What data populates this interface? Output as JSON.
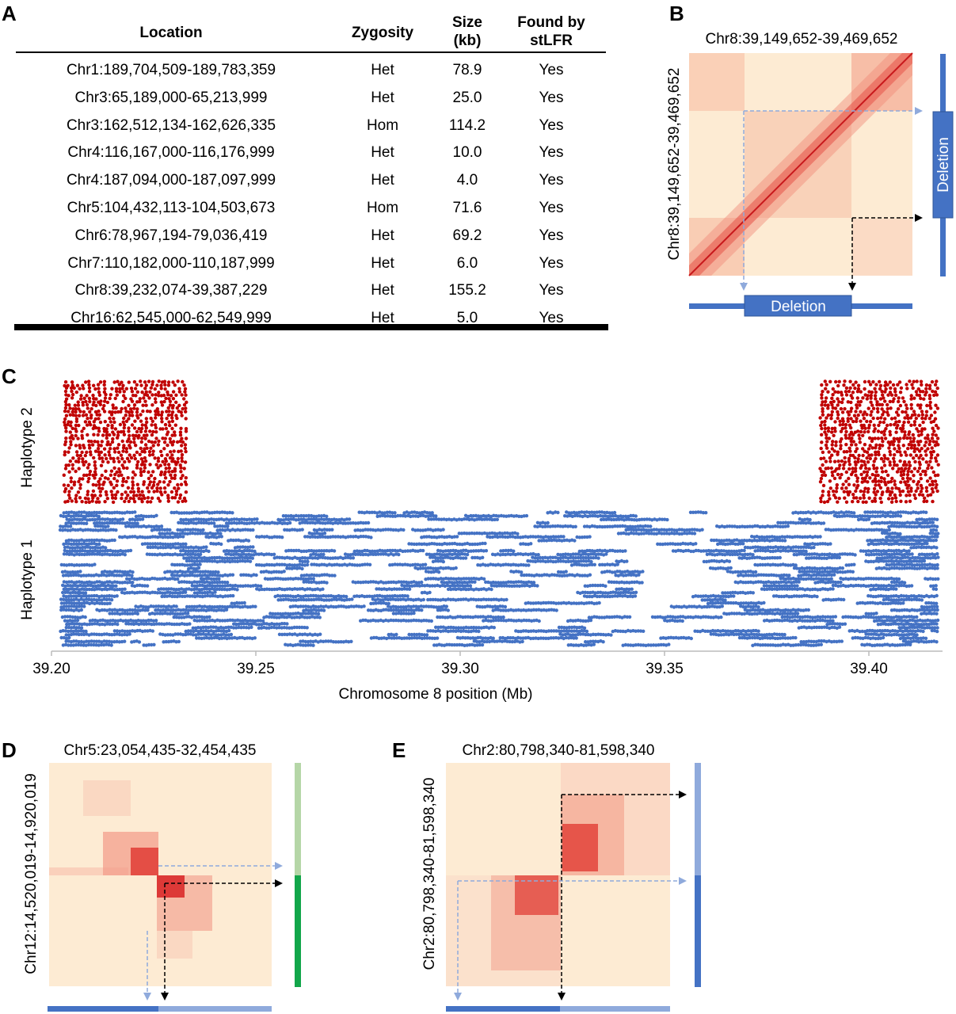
{
  "panels": {
    "a": "A",
    "b": "B",
    "c": "C",
    "d": "D",
    "e": "E"
  },
  "table": {
    "headers": {
      "location": "Location",
      "zygosity": "Zygosity",
      "size_line1": "Size",
      "size_line2": "(kb)",
      "found_line1": "Found by",
      "found_line2": "stLFR"
    },
    "rows": [
      {
        "location": "Chr1:189,704,509-189,783,359",
        "zygosity": "Het",
        "size": "78.9",
        "found": "Yes"
      },
      {
        "location": "Chr3:65,189,000-65,213,999",
        "zygosity": "Het",
        "size": "25.0",
        "found": "Yes"
      },
      {
        "location": "Chr3:162,512,134-162,626,335",
        "zygosity": "Hom",
        "size": "114.2",
        "found": "Yes"
      },
      {
        "location": "Chr4:116,167,000-116,176,999",
        "zygosity": "Het",
        "size": "10.0",
        "found": "Yes"
      },
      {
        "location": "Chr4:187,094,000-187,097,999",
        "zygosity": "Het",
        "size": "4.0",
        "found": "Yes"
      },
      {
        "location": "Chr5:104,432,113-104,503,673",
        "zygosity": "Hom",
        "size": "71.6",
        "found": "Yes"
      },
      {
        "location": "Chr6:78,967,194-79,036,419",
        "zygosity": "Het",
        "size": "69.2",
        "found": "Yes"
      },
      {
        "location": "Chr7:110,182,000-110,187,999",
        "zygosity": "Het",
        "size": "6.0",
        "found": "Yes"
      },
      {
        "location": "Chr8:39,232,074-39,387,229",
        "zygosity": "Het",
        "size": "155.2",
        "found": "Yes"
      },
      {
        "location": "Chr16:62,545,000-62,549,999",
        "zygosity": "Het",
        "size": "5.0",
        "found": "Yes"
      }
    ]
  },
  "chart_data": [
    {
      "panel": "B",
      "type": "heatmap",
      "title": "Chr8:39,149,652-39,469,652",
      "ylabel": "Chr8:39,149,652-39,469,652",
      "annotation_x": "Deletion",
      "annotation_y": "Deletion",
      "colors": {
        "low": "#fdebd3",
        "high": "#d7191c",
        "track": "#4472c4",
        "arrow_light": "#8faadc",
        "arrow_dark": "#000000"
      }
    },
    {
      "panel": "C",
      "type": "scatter",
      "xlabel": "Chromosome 8 position (Mb)",
      "xlim": [
        39.2,
        39.42
      ],
      "xticks": [
        "39.20",
        "39.25",
        "39.30",
        "39.35",
        "39.40"
      ],
      "xtick_values": [
        39.2,
        39.25,
        39.3,
        39.35,
        39.4
      ],
      "series": [
        {
          "name": "Haplotype 2",
          "color": "#c00000",
          "regions": [
            [
              39.203,
              39.233
            ],
            [
              39.388,
              39.417
            ]
          ]
        },
        {
          "name": "Haplotype 1",
          "color": "#4472c4",
          "regions": [
            [
              39.202,
              39.417
            ]
          ]
        }
      ]
    },
    {
      "panel": "D",
      "type": "heatmap",
      "title": "Chr5:23,054,435-32,454,435",
      "ylabel": "Chr12:14,520,019-14,920,019",
      "colors": {
        "low": "#fdebd3",
        "high": "#d7191c",
        "track_light": "#b5d6a7",
        "track_dark": "#12a64a",
        "x_dark": "#4472c4",
        "x_light": "#8faadc"
      }
    },
    {
      "panel": "E",
      "type": "heatmap",
      "title": "Chr2:80,798,340-81,598,340",
      "ylabel": "Chr2:80,798,340-81,598,340",
      "colors": {
        "low": "#fdebd3",
        "high": "#d7191c",
        "track_light": "#8faadc",
        "track_dark": "#4472c4"
      }
    }
  ]
}
